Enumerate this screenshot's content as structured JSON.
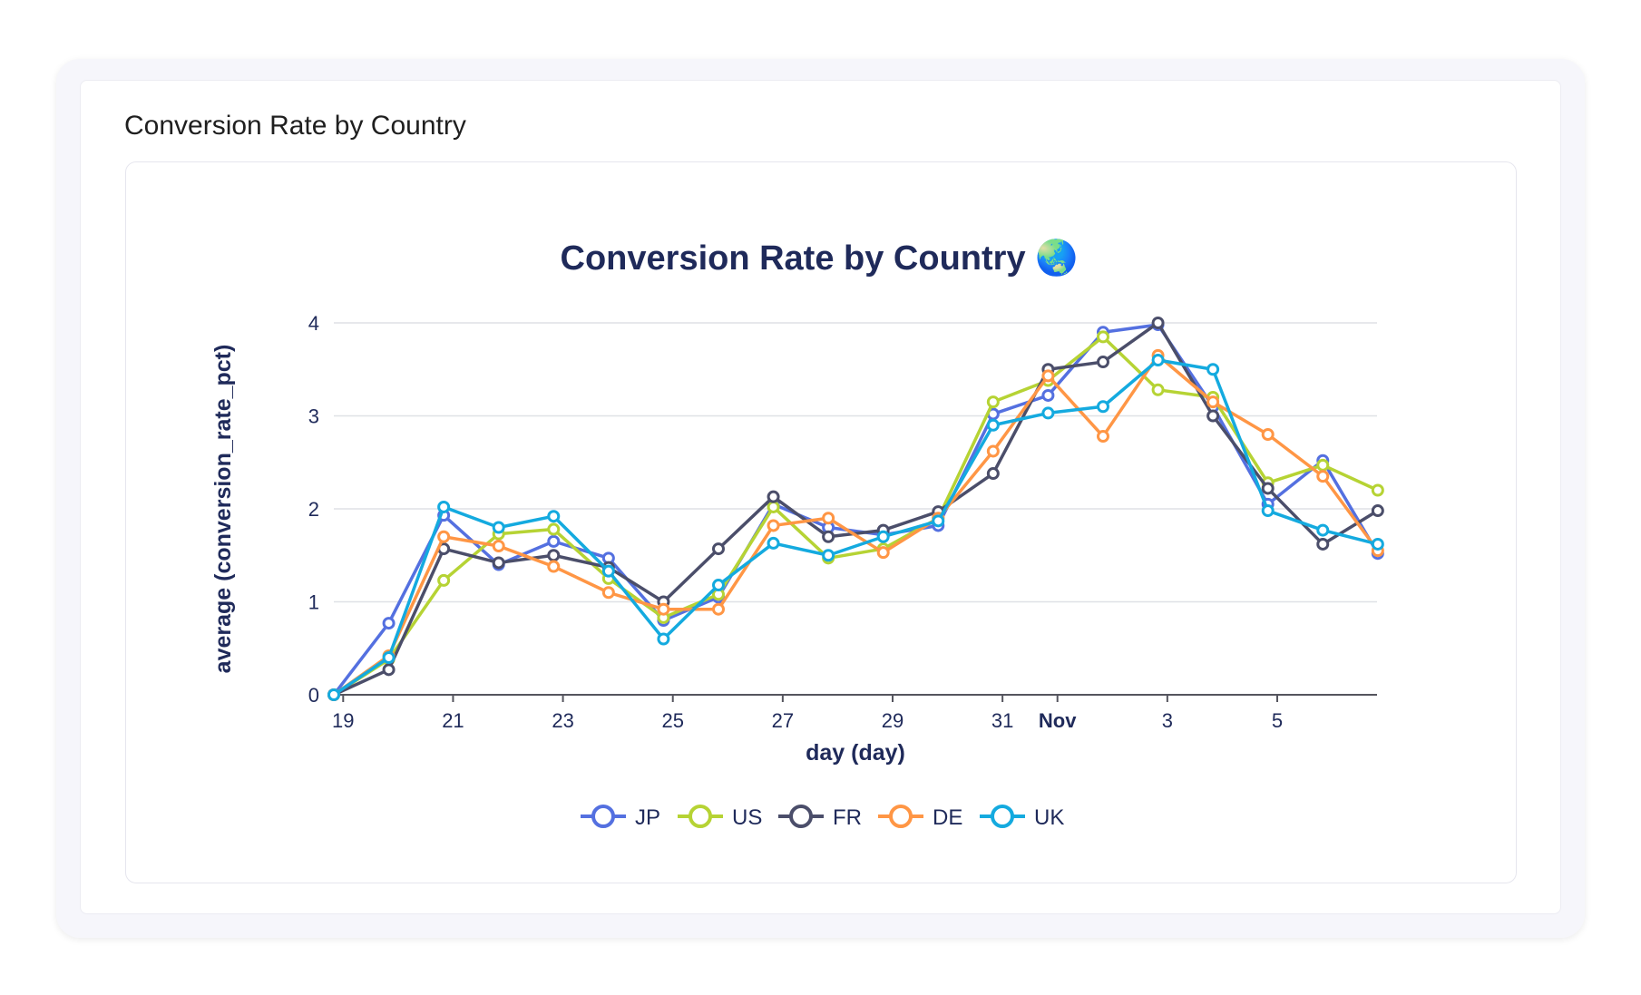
{
  "panel_title": "Conversion Rate by Country",
  "chart_data": {
    "type": "line",
    "title": "Conversion Rate by Country 🌏",
    "xlabel": "day (day)",
    "ylabel": "average (conversion_rate_pct)",
    "x": [
      "Oct 19",
      "Oct 20",
      "Oct 21",
      "Oct 22",
      "Oct 23",
      "Oct 24",
      "Oct 25",
      "Oct 26",
      "Oct 27",
      "Oct 28",
      "Oct 29",
      "Oct 30",
      "Oct 31",
      "Nov 1",
      "Nov 2",
      "Nov 3",
      "Nov 4",
      "Nov 5",
      "Nov 6",
      "Nov 7"
    ],
    "x_ticks": [
      {
        "label": "19",
        "day": 0
      },
      {
        "label": "21",
        "day": 2
      },
      {
        "label": "23",
        "day": 4
      },
      {
        "label": "25",
        "day": 6
      },
      {
        "label": "27",
        "day": 8
      },
      {
        "label": "29",
        "day": 10
      },
      {
        "label": "31",
        "day": 12
      },
      {
        "label": "Nov",
        "day": 13,
        "bold": true
      },
      {
        "label": "3",
        "day": 15
      },
      {
        "label": "5",
        "day": 17
      }
    ],
    "ylim": [
      0,
      4
    ],
    "y_ticks": [
      "0",
      "1",
      "2",
      "3",
      "4"
    ],
    "grid": true,
    "legend": "bottom",
    "series": [
      {
        "name": "JP",
        "color": "#5470e0",
        "values": [
          0,
          0.77,
          1.93,
          1.4,
          1.65,
          1.47,
          0.8,
          1.05,
          2.05,
          1.8,
          1.72,
          1.82,
          3.02,
          3.22,
          3.9,
          3.98,
          3.1,
          2.05,
          2.52,
          1.52
        ]
      },
      {
        "name": "US",
        "color": "#b6d334",
        "values": [
          0,
          0.38,
          1.23,
          1.73,
          1.78,
          1.25,
          0.83,
          1.08,
          2.02,
          1.47,
          1.57,
          1.9,
          3.15,
          3.38,
          3.85,
          3.28,
          3.2,
          2.28,
          2.47,
          2.2
        ]
      },
      {
        "name": "FR",
        "color": "#4b4e6a",
        "values": [
          0,
          0.27,
          1.57,
          1.42,
          1.5,
          1.37,
          1.0,
          1.57,
          2.13,
          1.7,
          1.77,
          1.97,
          2.38,
          3.5,
          3.58,
          4.0,
          3.0,
          2.22,
          1.62,
          1.98
        ]
      },
      {
        "name": "DE",
        "color": "#ff9645",
        "values": [
          0,
          0.42,
          1.7,
          1.6,
          1.38,
          1.1,
          0.92,
          0.92,
          1.82,
          1.9,
          1.53,
          1.9,
          2.62,
          3.43,
          2.78,
          3.65,
          3.15,
          2.8,
          2.35,
          1.55
        ]
      },
      {
        "name": "UK",
        "color": "#14aadf",
        "values": [
          0,
          0.4,
          2.02,
          1.8,
          1.92,
          1.33,
          0.6,
          1.18,
          1.63,
          1.5,
          1.7,
          1.87,
          2.9,
          3.03,
          3.1,
          3.6,
          3.5,
          1.98,
          1.77,
          1.62
        ]
      }
    ]
  }
}
